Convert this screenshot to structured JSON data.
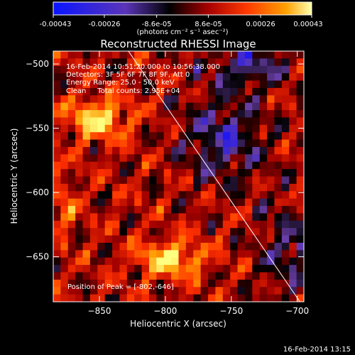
{
  "colorbar": {
    "ticks": [
      "-0.00043",
      "-0.00026",
      "-8.6e-05",
      "8.6e-05",
      "0.00026",
      "0.00043"
    ],
    "unit_label": "(photons cm⁻² s⁻¹ asec⁻²)",
    "range": [
      -0.00043,
      0.00043
    ]
  },
  "chart_data": {
    "type": "heatmap",
    "title": "Reconstructed RHESSI Image",
    "xlabel": "Heliocentric X (arcsec)",
    "ylabel": "Heliocentric Y (arcsec)",
    "xlim": [
      -885,
      -695
    ],
    "ylim": [
      -685,
      -490
    ],
    "xticks": [
      -850,
      -800,
      -750,
      -700
    ],
    "yticks": [
      -500,
      -550,
      -600,
      -650
    ],
    "annotations": [
      "16-Feb-2014 10:51:20.000 to 10:56:38.000",
      "Detectors: 3F 5F 6F 7F 8F 9F, Att 0",
      "Energy Range: 25.0 - 50.0 keV",
      "Clean     Total counts: 2.95E+04"
    ],
    "peak_label": "Position of Peak = [-802,-646]",
    "peak": [
      -802,
      -646
    ],
    "limb_line": [
      [
        -828,
        -490
      ],
      [
        -698,
        -685
      ]
    ],
    "colormap": [
      "#1010ff",
      "#6a3fa8",
      "#000000",
      "#a00000",
      "#ff3000",
      "#ff9a00",
      "#ffff80"
    ]
  },
  "footer": {
    "timestamp": "16-Feb-2014 13:15"
  }
}
